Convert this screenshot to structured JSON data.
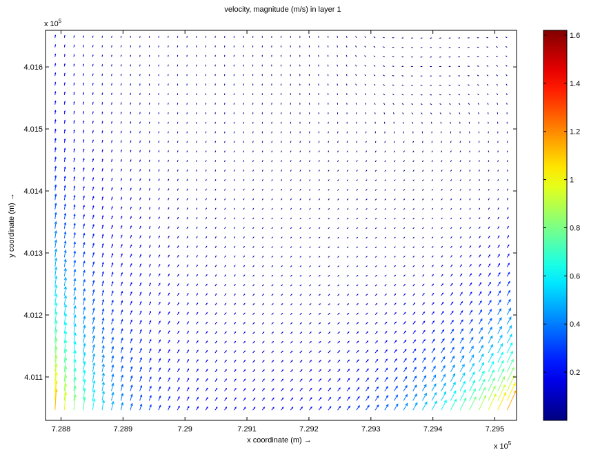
{
  "chart_data": {
    "type": "quiver",
    "title": "velocity, magnitude (m/s) in layer 1",
    "xlabel": "x coordinate (m) →",
    "ylabel": "y coordinate (m) →",
    "x_exponent_label": "x 10",
    "x_exponent_power": "5",
    "y_exponent_label": "x 10",
    "y_exponent_power": "5",
    "xlim": [
      728775,
      729535
    ],
    "ylim": [
      401030,
      401659
    ],
    "x_ticks": [
      728800,
      728900,
      729000,
      729100,
      729200,
      729300,
      729400,
      729500
    ],
    "x_tick_labels": [
      "7.288",
      "7.289",
      "7.29",
      "7.291",
      "7.292",
      "7.293",
      "7.294",
      "7.295"
    ],
    "y_ticks": [
      401100,
      401200,
      401300,
      401400,
      401500,
      401600
    ],
    "y_tick_labels": [
      "4.011",
      "4.012",
      "4.013",
      "4.014",
      "4.015",
      "4.016"
    ],
    "grid": false,
    "colorbar": {
      "colormap": "jet",
      "clim": [
        0,
        1.62
      ],
      "ticks": [
        0.2,
        0.4,
        0.6,
        0.8,
        1,
        1.2,
        1.4,
        1.6
      ],
      "tick_labels": [
        "0.2",
        "0.4",
        "0.6",
        "0.8",
        "1",
        "1.2",
        "1.4",
        "1.6"
      ]
    },
    "field": {
      "description": "grid of velocity vectors in data units (m)",
      "x_start": 728775,
      "x_step": 15.2,
      "nx": 50,
      "y_start": 401031,
      "y_step": 15.4,
      "ny": 41,
      "jets": [
        {
          "x": 728780,
          "y": 401035,
          "decay_x": 95,
          "decay_y": 260,
          "speed": 1.3,
          "dx": 0.05,
          "dy": 1
        },
        {
          "x": 729520,
          "y": 401035,
          "decay_x": 160,
          "decay_y": 140,
          "speed": 1.25,
          "dx": 0.45,
          "dy": 1
        }
      ],
      "background_speed": 0.12
    }
  }
}
